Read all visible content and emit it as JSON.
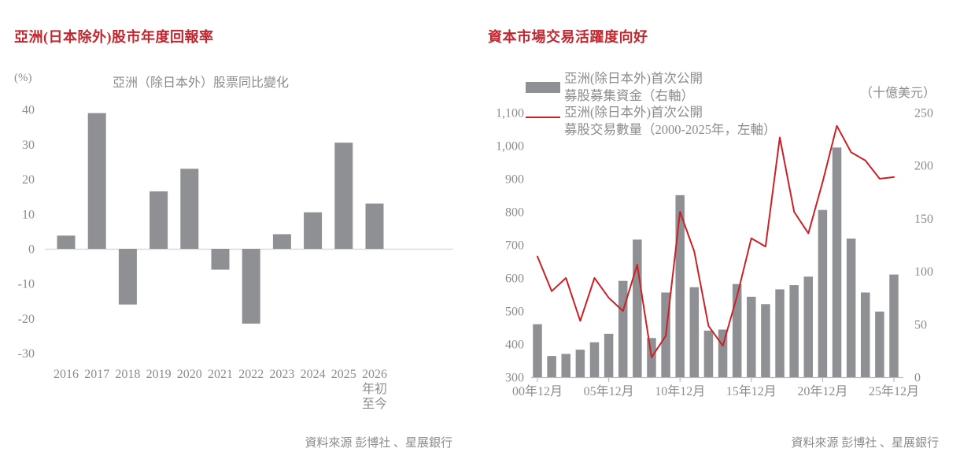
{
  "page": {
    "background": "#ffffff"
  },
  "left_panel": {
    "header": "亞洲(日本除外)股市年度回報率",
    "source": "資料來源 彭博社 、星展銀行"
  },
  "right_panel": {
    "header": "資本市場交易活躍度向好",
    "legend": [
      {
        "swatch": "bar-swatch",
        "line1": "亞洲(除日本外)首次公開",
        "line2": "募股募集資金（右軸）"
      },
      {
        "swatch": "line-swatch",
        "line1": "亞洲(除日本外)首次公開",
        "line2": "募股交易數量（2000-2025年，左軸）"
      }
    ],
    "unit_label": "（十億美元）",
    "source": "資料來源 彭博社 、星展銀行"
  },
  "colors": {
    "title_red": "#c2262e",
    "line_red": "#ca2127",
    "bar_gray": "#8f9093",
    "text_gray": "#8a8c8e",
    "axis_light": "#d9dadb",
    "axis_mid": "#b9babc"
  },
  "chart_data": [
    {
      "type": "bar",
      "title": "亞洲（除日本外）股票同比變化",
      "ylabel": "(%)",
      "categories": [
        "2016",
        "2017",
        "2018",
        "2019",
        "2020",
        "2021",
        "2022",
        "2023",
        "2024",
        "2025",
        "2026"
      ],
      "last_category_extra": [
        "年初",
        "至今"
      ],
      "values": [
        3.8,
        39,
        -16,
        16.5,
        23,
        -6,
        -21.5,
        4.2,
        10.5,
        30.5,
        13
      ],
      "ylim": [
        -30,
        40
      ],
      "yticks": [
        40,
        30,
        20,
        10,
        0,
        -10,
        -20,
        -30
      ],
      "grid": false,
      "legend_position": "none"
    },
    {
      "type": "bar+line",
      "title": "",
      "categories": [
        "2000",
        "2001",
        "2002",
        "2003",
        "2004",
        "2005",
        "2006",
        "2007",
        "2008",
        "2009",
        "2010",
        "2011",
        "2012",
        "2013",
        "2014",
        "2015",
        "2016",
        "2017",
        "2018",
        "2019",
        "2020",
        "2021",
        "2022",
        "2023",
        "2024",
        "2025"
      ],
      "series": [
        {
          "name": "亞洲(除日本外)首次公開募股募集資金（右軸）",
          "type": "bar",
          "axis": "right",
          "values": [
            50,
            20,
            22,
            26,
            33,
            41,
            91,
            130,
            37,
            80,
            172,
            85,
            44,
            45,
            88,
            76,
            69,
            83,
            87,
            95,
            158,
            217,
            131,
            80,
            62,
            97
          ]
        },
        {
          "name": "亞洲(除日本外)首次公開募股交易數量（2000-2025年，左軸）",
          "type": "line",
          "axis": "left",
          "values": [
            665,
            560,
            600,
            470,
            600,
            540,
            500,
            640,
            360,
            425,
            800,
            680,
            455,
            395,
            545,
            720,
            695,
            1025,
            800,
            735,
            890,
            1060,
            980,
            955,
            900,
            905
          ]
        }
      ],
      "left_axis": {
        "lim": [
          300,
          1100
        ],
        "tick_labels": [
          "1,100",
          "1,000",
          "900",
          "800",
          "700",
          "600",
          "500",
          "400",
          "300"
        ],
        "tick_values": [
          1100,
          1000,
          900,
          800,
          700,
          600,
          500,
          400,
          300
        ]
      },
      "right_axis": {
        "lim": [
          0,
          250
        ],
        "tick_labels": [
          "250",
          "200",
          "150",
          "100",
          "50",
          "0"
        ],
        "tick_values": [
          250,
          200,
          150,
          100,
          50,
          0
        ],
        "label": "（十億美元）"
      },
      "xticklabels": [
        "00年12月",
        "05年12月",
        "10年12月",
        "15年12月",
        "20年12月",
        "25年12月"
      ],
      "grid": false,
      "legend_position": "top"
    }
  ]
}
